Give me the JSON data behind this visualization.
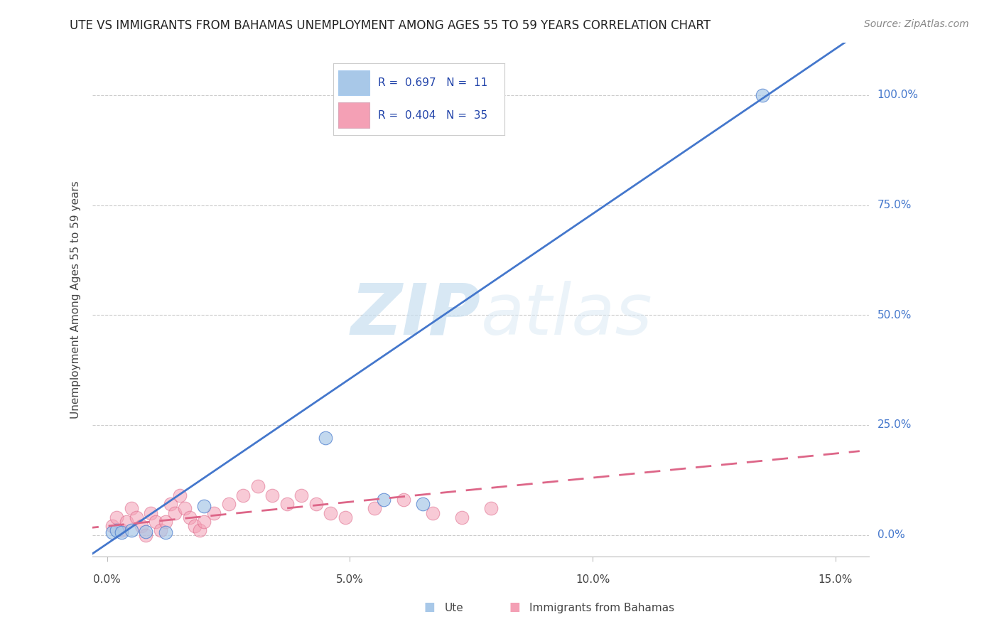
{
  "title": "UTE VS IMMIGRANTS FROM BAHAMAS UNEMPLOYMENT AMONG AGES 55 TO 59 YEARS CORRELATION CHART",
  "source": "Source: ZipAtlas.com",
  "ylabel": "Unemployment Among Ages 55 to 59 years",
  "xlim": [
    -0.003,
    0.157
  ],
  "ylim": [
    -0.05,
    1.12
  ],
  "xticks": [
    0.0,
    0.05,
    0.1,
    0.15
  ],
  "xtick_labels": [
    "0.0%",
    "5.0%",
    "10.0%",
    "15.0%"
  ],
  "ytick_vals": [
    0.0,
    0.25,
    0.5,
    0.75,
    1.0
  ],
  "ytick_labels": [
    "0.0%",
    "25.0%",
    "50.0%",
    "75.0%",
    "100.0%"
  ],
  "grid_color": "#cccccc",
  "background_color": "#ffffff",
  "blue_color": "#a8c8e8",
  "pink_color": "#f4a0b5",
  "blue_line_color": "#4477cc",
  "pink_line_color": "#dd6688",
  "R_blue": 0.697,
  "N_blue": 11,
  "R_pink": 0.404,
  "N_pink": 35,
  "ute_points_x": [
    0.001,
    0.002,
    0.003,
    0.005,
    0.008,
    0.012,
    0.02,
    0.045,
    0.057,
    0.065,
    0.135
  ],
  "ute_points_y": [
    0.005,
    0.01,
    0.005,
    0.01,
    0.008,
    0.005,
    0.065,
    0.22,
    0.08,
    0.07,
    1.0
  ],
  "bahamas_points_x": [
    0.001,
    0.002,
    0.003,
    0.004,
    0.005,
    0.006,
    0.007,
    0.008,
    0.009,
    0.01,
    0.011,
    0.012,
    0.013,
    0.014,
    0.015,
    0.016,
    0.017,
    0.018,
    0.019,
    0.02,
    0.022,
    0.025,
    0.028,
    0.031,
    0.034,
    0.037,
    0.04,
    0.043,
    0.046,
    0.049,
    0.055,
    0.061,
    0.067,
    0.073,
    0.079
  ],
  "bahamas_points_y": [
    0.02,
    0.04,
    0.01,
    0.03,
    0.06,
    0.04,
    0.02,
    0.0,
    0.05,
    0.03,
    0.01,
    0.03,
    0.07,
    0.05,
    0.09,
    0.06,
    0.04,
    0.02,
    0.01,
    0.03,
    0.05,
    0.07,
    0.09,
    0.11,
    0.09,
    0.07,
    0.09,
    0.07,
    0.05,
    0.04,
    0.06,
    0.08,
    0.05,
    0.04,
    0.06
  ],
  "blue_slope": 7.5,
  "blue_intercept": -0.02,
  "pink_slope": 1.1,
  "pink_intercept": 0.02,
  "legend_R1": "R =  0.697",
  "legend_N1": "N =  11",
  "legend_R2": "R =  0.404",
  "legend_N2": "N =  35",
  "watermark_zip": "ZIP",
  "watermark_atlas": "atlas",
  "title_fontsize": 12,
  "label_fontsize": 11,
  "tick_fontsize": 11
}
